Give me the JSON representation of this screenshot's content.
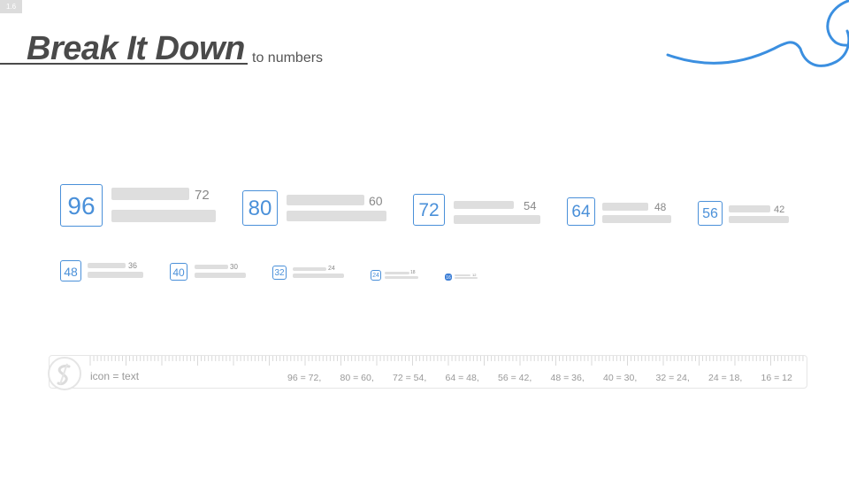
{
  "badge": "1.6",
  "title": "Break It Down",
  "subtitle": "to numbers",
  "colors": {
    "accent": "#4a90d9",
    "title": "#4a4a4a",
    "bar": "#dedede",
    "muted": "#999999"
  },
  "icons": {
    "ruler_logo": "scribble-s-icon",
    "decoration": "wave-swirl-icon"
  },
  "row1": [
    {
      "icon": "96",
      "text": "72"
    },
    {
      "icon": "80",
      "text": "60"
    },
    {
      "icon": "72",
      "text": "54"
    },
    {
      "icon": "64",
      "text": "48"
    },
    {
      "icon": "56",
      "text": "42"
    }
  ],
  "row2": [
    {
      "icon": "48",
      "text": "36"
    },
    {
      "icon": "40",
      "text": "30"
    },
    {
      "icon": "32",
      "text": "24"
    },
    {
      "icon": "24",
      "text": "18"
    },
    {
      "icon": "16",
      "text": "12"
    }
  ],
  "ruler": {
    "label": "icon = text",
    "pairs": [
      "96 = 72,",
      "80 = 60,",
      "72 = 54,",
      "64 = 48,",
      "56 = 42,",
      "48 = 36,",
      "40 = 30,",
      "32 = 24,",
      "24 = 18,",
      "16 = 12"
    ]
  }
}
